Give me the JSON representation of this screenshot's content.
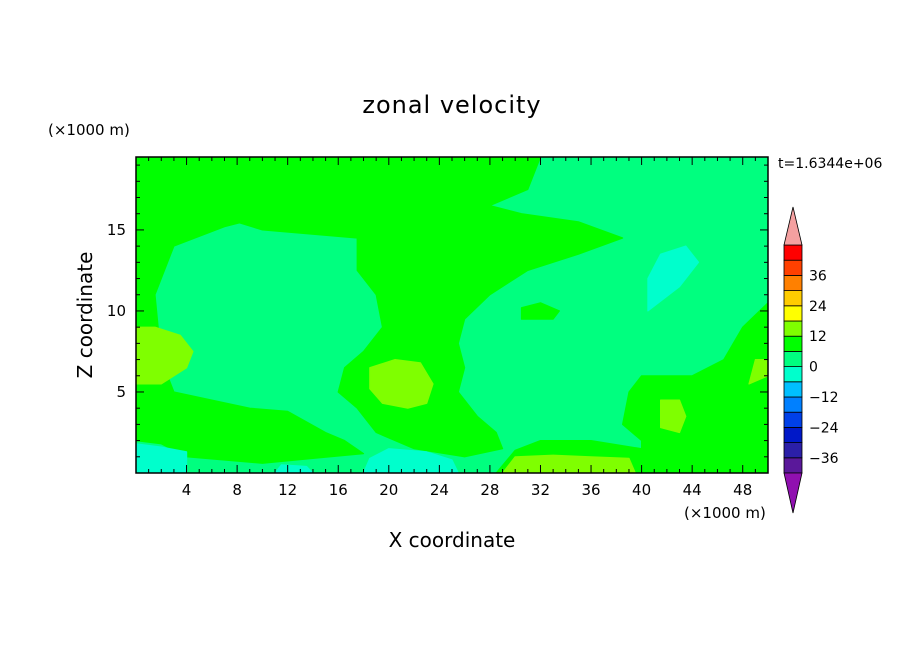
{
  "chart_data": {
    "type": "heatmap",
    "title": "zonal velocity",
    "xlabel": "X coordinate",
    "ylabel": "Z coordinate",
    "x_units": "(×1000 m)",
    "y_units": "(×1000 m)",
    "time_label": "t=1.6344e+06",
    "xlim": [
      0,
      50
    ],
    "ylim": [
      0,
      19.5
    ],
    "x_ticks": [
      4,
      8,
      12,
      16,
      20,
      24,
      28,
      32,
      36,
      40,
      44,
      48
    ],
    "y_ticks": [
      5,
      10,
      15
    ],
    "colorbar": {
      "ticks": [
        36,
        24,
        12,
        0,
        -12,
        -24,
        -36
      ],
      "levels": [
        {
          "from": -42,
          "to": -36,
          "color": "#5a189a"
        },
        {
          "from": -36,
          "to": -30,
          "color": "#2b1fa8"
        },
        {
          "from": -30,
          "to": -24,
          "color": "#0018c8"
        },
        {
          "from": -24,
          "to": -18,
          "color": "#0040e8"
        },
        {
          "from": -18,
          "to": -12,
          "color": "#0080ff"
        },
        {
          "from": -12,
          "to": -6,
          "color": "#00bfff"
        },
        {
          "from": -6,
          "to": 0,
          "color": "#00ffcc"
        },
        {
          "from": 0,
          "to": 6,
          "color": "#00ff7f"
        },
        {
          "from": 6,
          "to": 12,
          "color": "#00ff00"
        },
        {
          "from": 12,
          "to": 18,
          "color": "#7fff00"
        },
        {
          "from": 18,
          "to": 24,
          "color": "#ffff00"
        },
        {
          "from": 24,
          "to": 30,
          "color": "#ffcc00"
        },
        {
          "from": 30,
          "to": 36,
          "color": "#ff8000"
        },
        {
          "from": 36,
          "to": 42,
          "color": "#ff4000"
        },
        {
          "from": 42,
          "to": 48,
          "color": "#ff0000"
        }
      ],
      "over_color": "#f4a0a0",
      "under_color": "#9010b0"
    },
    "field_regions": [
      {
        "level": "0 to 6",
        "color": "#00ff7f",
        "polygon": [
          [
            0,
            0
          ],
          [
            50,
            0
          ],
          [
            50,
            19.5
          ],
          [
            0,
            19.5
          ]
        ]
      },
      {
        "level": "6 to 12",
        "color": "#00ff00",
        "polygon": [
          [
            0,
            19.5
          ],
          [
            12,
            19.5
          ],
          [
            11,
            16
          ],
          [
            7,
            15.2
          ],
          [
            3,
            14
          ],
          [
            1.5,
            11
          ],
          [
            2,
            7
          ],
          [
            3,
            5
          ],
          [
            6,
            4.5
          ],
          [
            9,
            4
          ],
          [
            12,
            3.8
          ],
          [
            15,
            2.5
          ],
          [
            16.5,
            2
          ],
          [
            18,
            1.2
          ],
          [
            14,
            0.9
          ],
          [
            10,
            0.6
          ],
          [
            4,
            1
          ],
          [
            2,
            1.8
          ],
          [
            0,
            2
          ]
        ]
      },
      {
        "level": "6 to 12",
        "color": "#00ff00",
        "polygon": [
          [
            12,
            19.5
          ],
          [
            32,
            19.5
          ],
          [
            31,
            17.5
          ],
          [
            28,
            16.5
          ],
          [
            30.5,
            16
          ],
          [
            35,
            15.5
          ],
          [
            38.5,
            14.5
          ],
          [
            35,
            13.5
          ],
          [
            31,
            12.5
          ],
          [
            28,
            11
          ],
          [
            26,
            9.5
          ],
          [
            25.5,
            8
          ],
          [
            26,
            6.5
          ],
          [
            25.5,
            5
          ],
          [
            27,
            3.5
          ],
          [
            28.5,
            2.5
          ],
          [
            29,
            1.5
          ],
          [
            26,
            1
          ],
          [
            22,
            1.5
          ],
          [
            19,
            2.5
          ],
          [
            17.5,
            4
          ],
          [
            16,
            5
          ],
          [
            16.5,
            6.5
          ],
          [
            18,
            7.5
          ],
          [
            19.5,
            9
          ],
          [
            19,
            11
          ],
          [
            17.5,
            12.5
          ],
          [
            17.5,
            14.5
          ],
          [
            13,
            14.8
          ],
          [
            10,
            15
          ],
          [
            7.5,
            15.6
          ],
          [
            11,
            16.5
          ]
        ]
      },
      {
        "level": "6 to 12",
        "color": "#00ff00",
        "polygon": [
          [
            28.5,
            0
          ],
          [
            40,
            0
          ],
          [
            40,
            1.5
          ],
          [
            36,
            2
          ],
          [
            32,
            2
          ],
          [
            30,
            1.4
          ]
        ]
      },
      {
        "level": "6 to 12",
        "color": "#00ff00",
        "polygon": [
          [
            40,
            0
          ],
          [
            50,
            0
          ],
          [
            50,
            10.5
          ],
          [
            48,
            9
          ],
          [
            46.5,
            7
          ],
          [
            44,
            6
          ],
          [
            40,
            6
          ],
          [
            39,
            5
          ],
          [
            38.5,
            3
          ],
          [
            40,
            2
          ]
        ]
      },
      {
        "level": "6 to 12",
        "color": "#00ff00",
        "polygon": [
          [
            30.5,
            9.5
          ],
          [
            33,
            9.5
          ],
          [
            33.5,
            10
          ],
          [
            32,
            10.5
          ],
          [
            30.5,
            10.2
          ]
        ]
      },
      {
        "level": "12 to 18",
        "color": "#7fff00",
        "polygon": [
          [
            0,
            9
          ],
          [
            1.5,
            9
          ],
          [
            3.5,
            8.5
          ],
          [
            4.5,
            7.5
          ],
          [
            4,
            6.5
          ],
          [
            2,
            5.5
          ],
          [
            0,
            5.5
          ]
        ]
      },
      {
        "level": "12 to 18",
        "color": "#7fff00",
        "polygon": [
          [
            18.5,
            6.5
          ],
          [
            20.5,
            7
          ],
          [
            22.5,
            6.8
          ],
          [
            23.5,
            5.5
          ],
          [
            23,
            4.3
          ],
          [
            21.5,
            4
          ],
          [
            19.5,
            4.3
          ],
          [
            18.5,
            5.2
          ]
        ]
      },
      {
        "level": "12 to 18",
        "color": "#7fff00",
        "polygon": [
          [
            29,
            0
          ],
          [
            39.5,
            0
          ],
          [
            39,
            0.9
          ],
          [
            36,
            1
          ],
          [
            33,
            1.1
          ],
          [
            30,
            1
          ]
        ]
      },
      {
        "level": "12 to 18",
        "color": "#7fff00",
        "polygon": [
          [
            41.5,
            4.5
          ],
          [
            43,
            4.5
          ],
          [
            43.5,
            3.5
          ],
          [
            43,
            2.5
          ],
          [
            41.5,
            2.8
          ]
        ]
      },
      {
        "level": "12 to 18",
        "color": "#7fff00",
        "polygon": [
          [
            48.5,
            5.5
          ],
          [
            50,
            6
          ],
          [
            50,
            7
          ],
          [
            49,
            7
          ]
        ]
      },
      {
        "level": "0 to -6",
        "color": "#00ffcc",
        "polygon": [
          [
            40.5,
            10
          ],
          [
            43,
            11.5
          ],
          [
            44.5,
            13
          ],
          [
            43.5,
            14
          ],
          [
            41.5,
            13.5
          ],
          [
            40.5,
            12
          ]
        ]
      },
      {
        "level": "0 to -6",
        "color": "#00ffcc",
        "polygon": [
          [
            0,
            0
          ],
          [
            4,
            0
          ],
          [
            4,
            1.3
          ],
          [
            2,
            1.6
          ],
          [
            0,
            1.8
          ]
        ]
      },
      {
        "level": "0 to -6",
        "color": "#00ffcc",
        "polygon": [
          [
            18,
            0
          ],
          [
            25.5,
            0
          ],
          [
            25,
            0.8
          ],
          [
            23,
            1.3
          ],
          [
            20,
            1.5
          ],
          [
            18.5,
            0.9
          ]
        ]
      },
      {
        "level": "0 to -6",
        "color": "#00ffcc",
        "polygon": [
          [
            11,
            0
          ],
          [
            14,
            0
          ],
          [
            13.5,
            0.4
          ],
          [
            11.5,
            0.5
          ]
        ]
      }
    ]
  }
}
